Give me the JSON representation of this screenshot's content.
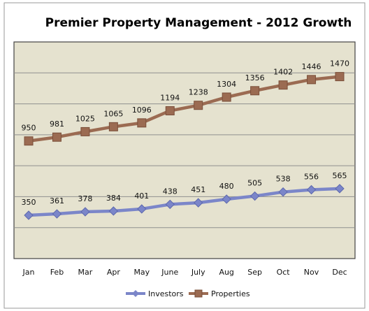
{
  "chart_data": {
    "type": "line",
    "title": "Premier Property Management - 2012 Growth",
    "categories": [
      "Jan",
      "Feb",
      "Mar",
      "Apr",
      "May",
      "June",
      "July",
      "Aug",
      "Sep",
      "Oct",
      "Nov",
      "Dec"
    ],
    "series": [
      {
        "name": "Investors",
        "values": [
          350,
          361,
          378,
          384,
          401,
          438,
          451,
          480,
          505,
          538,
          556,
          565
        ],
        "color": "#7b86c9",
        "marker": "diamond"
      },
      {
        "name": "Properties",
        "values": [
          950,
          981,
          1025,
          1065,
          1096,
          1194,
          1238,
          1304,
          1356,
          1402,
          1446,
          1470
        ],
        "color": "#9b6b52",
        "marker": "square"
      }
    ],
    "ylim": [
      0,
      1750
    ],
    "grid": true,
    "legend": "bottom",
    "plot_background": "#e5e2cf"
  }
}
